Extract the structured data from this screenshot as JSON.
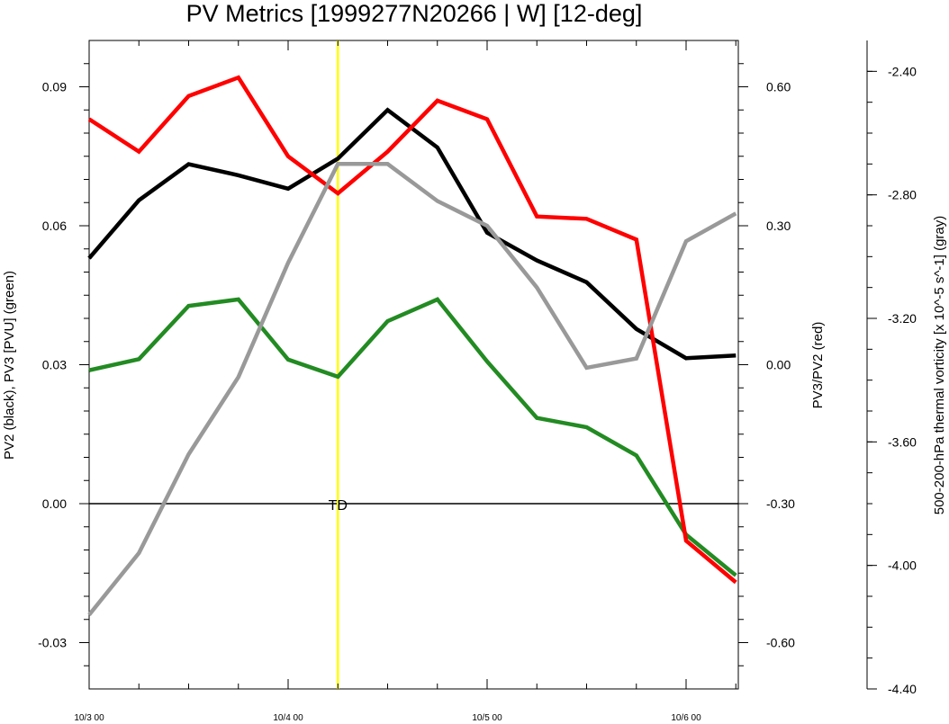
{
  "chart_data": {
    "type": "line",
    "title": "PV Metrics [1999277N20266 | W] [12-deg]",
    "x": [
      "10/3 00",
      "10/3 06",
      "10/3 12",
      "10/3 18",
      "10/4 00",
      "10/4 06",
      "10/4 12",
      "10/4 18",
      "10/5 00",
      "10/5 06",
      "10/5 12",
      "10/5 18",
      "10/6 00",
      "10/6 06"
    ],
    "x_tick_labels": [
      "10/3 00",
      "10/4 00",
      "10/5 00",
      "10/6 00"
    ],
    "y_left": {
      "label": "PV2 (black), PV3 [PVU] (green)",
      "range": [
        -0.04,
        0.1
      ],
      "ticks": [
        -0.03,
        0.0,
        0.03,
        0.06,
        0.09
      ],
      "tick_labels": [
        "-0.03",
        "0.00",
        "0.03",
        "0.06",
        "0.09"
      ]
    },
    "y_right": {
      "label": "PV3/PV2 (red)",
      "range": [
        -0.7,
        0.7
      ],
      "ticks": [
        -0.6,
        -0.3,
        0.0,
        0.3,
        0.6
      ],
      "tick_labels": [
        "-0.60",
        "-0.30",
        "0.00",
        "0.30",
        "0.60"
      ]
    },
    "y_far_right": {
      "label": "500-200-hPa thermal vorticity [x 10^-5 s^-1] (gray)",
      "range": [
        -4.4,
        -2.3
      ],
      "ticks": [
        -4.4,
        -4.0,
        -3.6,
        -3.2,
        -2.8,
        -2.4
      ],
      "tick_labels": [
        "-4.40",
        "-4.00",
        "-3.60",
        "-3.20",
        "-2.80",
        "-2.40"
      ]
    },
    "series": [
      {
        "color": "#000000",
        "axis": "left",
        "values": [
          0.053,
          0.0655,
          0.0733,
          0.0709,
          0.068,
          0.0745,
          0.085,
          0.0769,
          0.0585,
          0.0525,
          0.0478,
          0.0377,
          0.0314,
          0.032
        ]
      },
      {
        "color": "#228B22",
        "axis": "left",
        "values": [
          0.0288,
          0.0312,
          0.0427,
          0.0441,
          0.0311,
          0.0274,
          0.0394,
          0.0441,
          0.0307,
          0.0185,
          0.0165,
          0.0104,
          -0.0067,
          -0.0155
        ]
      },
      {
        "color": "#ff0000",
        "axis": "right",
        "values": [
          0.53,
          0.46,
          0.58,
          0.62,
          0.45,
          0.37,
          0.46,
          0.57,
          0.53,
          0.32,
          0.315,
          0.27,
          -0.38,
          -0.47
        ]
      },
      {
        "color": "#999999",
        "axis": "far_right",
        "values": [
          -4.16,
          -3.96,
          -3.64,
          -3.39,
          -3.02,
          -2.7,
          -2.7,
          -2.82,
          -2.9,
          -3.1,
          -3.36,
          -3.33,
          -2.95,
          -2.86
        ]
      }
    ],
    "zero_line": 0.0,
    "marker": {
      "x": "10/4 06",
      "color": "#ffff00",
      "label": "TD"
    },
    "legend": "none",
    "grid": false
  }
}
